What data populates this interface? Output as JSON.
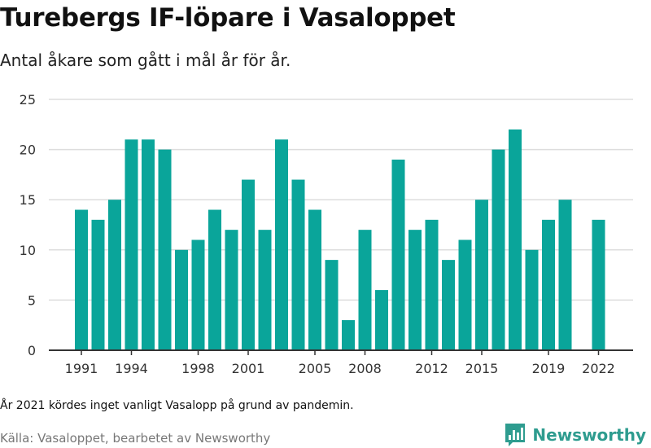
{
  "title": "Turebergs IF-löpare i Vasaloppet",
  "subtitle": "Antal åkare som gått i mål år för år.",
  "note": "År 2021 kördes inget vanligt Vasalopp på grund av pandemin.",
  "source": "Källa: Vasaloppet, bearbetet av Newsworthy",
  "brand": {
    "name": "Newsworthy",
    "logo_icon": "bar-chart-icon"
  },
  "colors": {
    "bar": "#0aa59a",
    "grid": "#dddddd",
    "axis": "#333333",
    "brand": "#2e9c8f"
  },
  "chart_data": {
    "type": "bar",
    "x": [
      1991,
      1992,
      1993,
      1994,
      1995,
      1996,
      1997,
      1998,
      1999,
      2000,
      2001,
      2002,
      2003,
      2004,
      2005,
      2006,
      2007,
      2008,
      2009,
      2010,
      2011,
      2012,
      2013,
      2014,
      2015,
      2016,
      2017,
      2018,
      2019,
      2020,
      2022
    ],
    "values": [
      14,
      13,
      15,
      21,
      21,
      20,
      10,
      11,
      14,
      12,
      17,
      12,
      21,
      17,
      14,
      9,
      3,
      12,
      6,
      19,
      12,
      13,
      9,
      11,
      15,
      20,
      22,
      10,
      13,
      15,
      13
    ],
    "xticks": [
      "1991",
      "1994",
      "1998",
      "2001",
      "2005",
      "2008",
      "2012",
      "2015",
      "2019",
      "2022"
    ],
    "yticks": [
      "0",
      "5",
      "10",
      "15",
      "20",
      "25"
    ],
    "ylim": [
      0,
      25
    ],
    "xlim": [
      1990,
      2023
    ],
    "grid": true,
    "xlabel": "",
    "ylabel": ""
  }
}
